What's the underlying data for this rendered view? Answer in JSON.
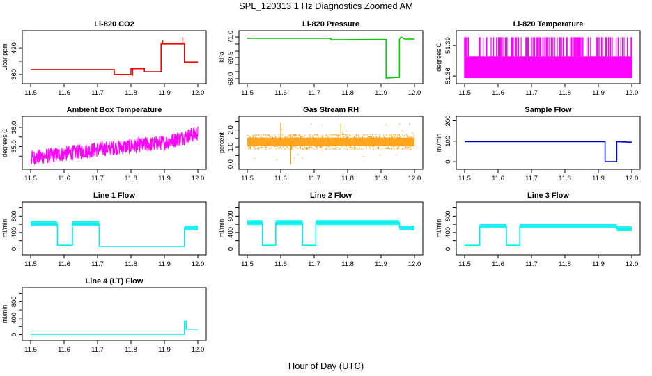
{
  "page": {
    "title": "SPL_120313  1 Hz Diagnostics Zoomed AM",
    "xlabel": "Hour of Day (UTC)"
  },
  "chart_data": [
    {
      "type": "line",
      "title": "Li-820 CO2",
      "ylabel": "Licor ppm",
      "color": "#ff0000",
      "xlim": [
        11.5,
        12.0
      ],
      "xticks": [
        11.5,
        11.6,
        11.7,
        11.8,
        11.9,
        12.0
      ],
      "ylim": [
        347,
        452
      ],
      "yticks": [
        360,
        390,
        420
      ],
      "tick_labels": [
        "360",
        "",
        "420"
      ],
      "series": [
        {
          "x": [
            11.5,
            11.75,
            11.75,
            11.8,
            11.8,
            11.84,
            11.84,
            11.89,
            11.89,
            11.96,
            11.96,
            12.0
          ],
          "y": [
            371,
            371,
            360,
            360,
            373,
            373,
            366,
            366,
            430,
            430,
            388,
            388
          ]
        }
      ],
      "spikes": [
        {
          "x": 11.805,
          "y": 357
        },
        {
          "x": 11.895,
          "y": 438
        },
        {
          "x": 11.955,
          "y": 445
        }
      ]
    },
    {
      "type": "line",
      "title": "Li-820 Pressure",
      "ylabel": "kPa",
      "color": "#00cc00",
      "xlim": [
        11.5,
        12.0
      ],
      "xticks": [
        11.5,
        11.6,
        11.7,
        11.8,
        11.9,
        12.0
      ],
      "ylim": [
        67.9,
        71.2
      ],
      "yticks": [
        68.0,
        68.5,
        69.0,
        69.5,
        70.0,
        70.5,
        71.0
      ],
      "tick_labels": [
        "68.0",
        "",
        "",
        "69.5",
        "",
        "",
        "71.0"
      ],
      "series": [
        {
          "x": [
            11.5,
            11.75,
            11.75,
            11.88,
            11.915,
            11.915,
            11.955,
            11.955,
            11.96,
            11.97,
            12.0
          ],
          "y": [
            70.9,
            70.9,
            70.8,
            70.82,
            70.82,
            68.05,
            68.1,
            70.8,
            71.0,
            70.85,
            70.85
          ]
        }
      ]
    },
    {
      "type": "line",
      "title": "Li-820 Temperature",
      "ylabel": "degrees C",
      "color": "#ff00ff",
      "xlim": [
        11.5,
        12.0
      ],
      "xticks": [
        11.5,
        11.6,
        11.7,
        11.8,
        11.9,
        12.0
      ],
      "ylim": [
        51.356,
        51.401
      ],
      "yticks": [
        51.36,
        51.39
      ],
      "tick_labels": [
        "51.36",
        "51.39"
      ],
      "series": [
        {
          "pattern": "dense_oscillation",
          "levels": [
            51.358,
            51.379,
            51.398
          ]
        }
      ]
    },
    {
      "type": "line",
      "title": "Ambient Box Temperature",
      "ylabel": "degrees C",
      "color": "#ff00ff",
      "xlim": [
        11.5,
        12.0
      ],
      "xticks": [
        11.5,
        11.6,
        11.7,
        11.8,
        11.9,
        12.0
      ],
      "ylim": [
        34.0,
        36.4
      ],
      "yticks": [
        34.5,
        35.0,
        35.5,
        36.0
      ],
      "tick_labels": [
        "",
        "35.0",
        "",
        "36.0"
      ],
      "series": [
        {
          "pattern": "noisy_trend",
          "x": [
            11.5,
            11.7,
            11.9,
            11.95,
            12.0
          ],
          "y": [
            34.4,
            34.85,
            35.2,
            35.45,
            35.7
          ]
        }
      ]
    },
    {
      "type": "line",
      "title": "Gas Stream RH",
      "ylabel": "percent",
      "color": "#ff9900",
      "xlim": [
        11.5,
        12.0
      ],
      "xticks": [
        11.5,
        11.6,
        11.7,
        11.8,
        11.9,
        12.0
      ],
      "ylim": [
        -0.1,
        2.6
      ],
      "yticks": [
        0.0,
        0.5,
        1.0,
        1.5,
        2.0,
        2.5
      ],
      "tick_labels": [
        "0.0",
        "",
        "1.0",
        "",
        "2.0",
        ""
      ],
      "series": [
        {
          "pattern": "noisy_band",
          "center": 1.3,
          "spread": 0.25
        }
      ]
    },
    {
      "type": "line",
      "title": "Sample Flow",
      "ylabel": "ml/min",
      "color": "#0000cc",
      "xlim": [
        11.5,
        12.0
      ],
      "xticks": [
        11.5,
        11.6,
        11.7,
        11.8,
        11.9,
        12.0
      ],
      "ylim": [
        -20,
        205
      ],
      "yticks": [
        0,
        100,
        200
      ],
      "tick_labels": [
        "0",
        "100",
        "200"
      ],
      "series": [
        {
          "x": [
            11.5,
            11.92,
            11.92,
            11.955,
            11.955,
            12.0
          ],
          "y": [
            98,
            98,
            0,
            0,
            98,
            95
          ]
        }
      ]
    },
    {
      "type": "line",
      "title": "Line 1 Flow",
      "ylabel": "ml/min",
      "color": "#00eeee",
      "xlim": [
        11.5,
        12.0
      ],
      "xticks": [
        11.5,
        11.6,
        11.7,
        11.8,
        11.9,
        12.0
      ],
      "ylim": [
        -60,
        1060
      ],
      "yticks": [
        0,
        200,
        400,
        600,
        800,
        1000
      ],
      "tick_labels": [
        "0",
        "",
        "400",
        "",
        "800",
        ""
      ],
      "series": [
        {
          "x": [
            11.5,
            11.58,
            11.58,
            11.625,
            11.625,
            11.705,
            11.705,
            11.96,
            11.96,
            12.0
          ],
          "y": [
            610,
            610,
            90,
            90,
            610,
            610,
            60,
            60,
            510,
            510
          ]
        }
      ]
    },
    {
      "type": "line",
      "title": "Line 2 Flow",
      "ylabel": "ml/min",
      "color": "#00eeee",
      "xlim": [
        11.5,
        12.0
      ],
      "xticks": [
        11.5,
        11.6,
        11.7,
        11.8,
        11.9,
        12.0
      ],
      "ylim": [
        -60,
        1060
      ],
      "yticks": [
        0,
        200,
        400,
        600,
        800,
        1000
      ],
      "tick_labels": [
        "0",
        "",
        "400",
        "",
        "800",
        ""
      ],
      "series": [
        {
          "x": [
            11.5,
            11.545,
            11.545,
            11.585,
            11.585,
            11.665,
            11.665,
            11.705,
            11.705,
            11.955,
            11.955,
            12.0
          ],
          "y": [
            640,
            640,
            90,
            90,
            640,
            640,
            90,
            90,
            640,
            640,
            510,
            510
          ]
        }
      ]
    },
    {
      "type": "line",
      "title": "Line 3 Flow",
      "ylabel": "ml/min",
      "color": "#00eeee",
      "xlim": [
        11.5,
        12.0
      ],
      "xticks": [
        11.5,
        11.6,
        11.7,
        11.8,
        11.9,
        12.0
      ],
      "ylim": [
        -60,
        1060
      ],
      "yticks": [
        0,
        200,
        400,
        600,
        800,
        1000
      ],
      "tick_labels": [
        "0",
        "",
        "400",
        "",
        "800",
        ""
      ],
      "series": [
        {
          "x": [
            11.5,
            11.545,
            11.545,
            11.625,
            11.625,
            11.665,
            11.665,
            11.955,
            11.955,
            12.0
          ],
          "y": [
            90,
            90,
            560,
            560,
            90,
            90,
            560,
            560,
            490,
            490
          ]
        }
      ]
    },
    {
      "type": "line",
      "title": "Line 4 (LT) Flow",
      "ylabel": "ml/min",
      "color": "#00eeee",
      "xlim": [
        11.5,
        12.0
      ],
      "xticks": [
        11.5,
        11.6,
        11.7,
        11.8,
        11.9,
        12.0
      ],
      "ylim": [
        -60,
        1060
      ],
      "yticks": [
        0,
        200,
        400,
        600,
        800,
        1000
      ],
      "tick_labels": [
        "0",
        "",
        "400",
        "",
        "800",
        ""
      ],
      "series": [
        {
          "x": [
            11.5,
            11.96,
            11.96,
            11.965,
            11.965,
            12.0
          ],
          "y": [
            10,
            10,
            320,
            320,
            130,
            130
          ]
        }
      ]
    }
  ]
}
